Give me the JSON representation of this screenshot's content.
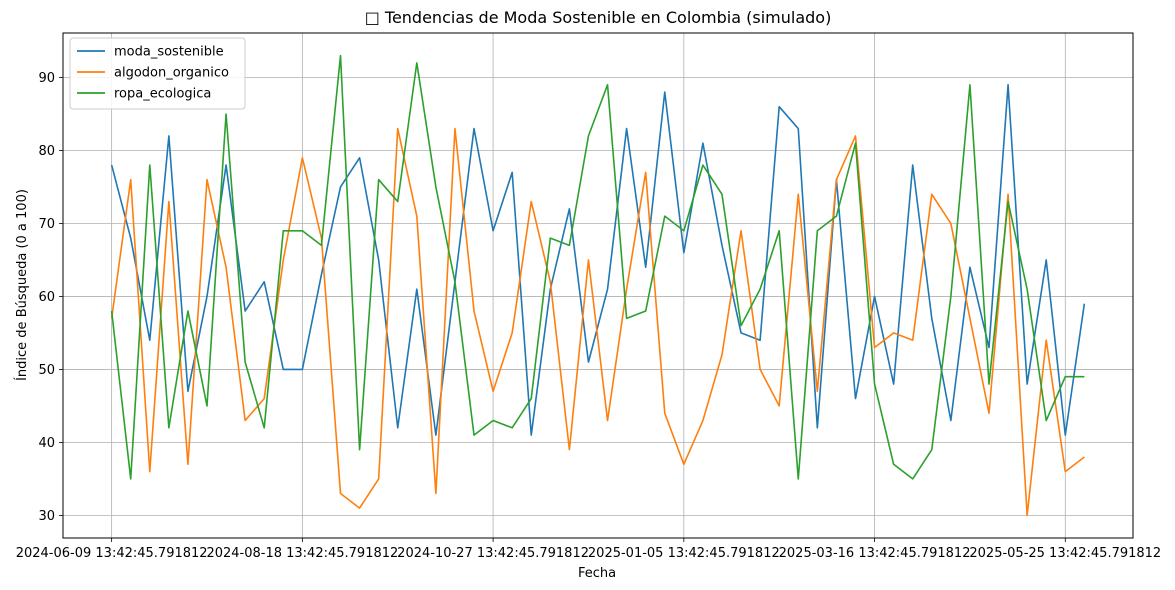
{
  "chart_data": {
    "type": "line",
    "title": "□ Tendencias de Moda Sostenible en Colombia (simulado)",
    "xlabel": "Fecha",
    "ylabel": "Índice de Búsqueda (0 a 100)",
    "x_ticks": [
      "2024-06-09 13:42:45.791812",
      "2024-08-18 13:42:45.791812",
      "2024-10-27 13:42:45.791812",
      "2025-01-05 13:42:45.791812",
      "2025-03-16 13:42:45.791812",
      "2025-05-25 13:42:45.791812"
    ],
    "y_ticks": [
      30,
      40,
      50,
      60,
      70,
      80,
      90
    ],
    "ylim": [
      26.9,
      96.1
    ],
    "x_date_range": [
      "2024-06-09",
      "2025-06-01"
    ],
    "x_step_days": 7,
    "grid": true,
    "legend_position": "top-left",
    "series": [
      {
        "name": "moda_sostenible",
        "color": "#1f77b4",
        "values": [
          78,
          68,
          54,
          82,
          47,
          60,
          78,
          58,
          62,
          50,
          50,
          63,
          75,
          79,
          65,
          42,
          61,
          41,
          62,
          83,
          69,
          77,
          41,
          61,
          72,
          51,
          61,
          83,
          64,
          88,
          66,
          81,
          67,
          55,
          54,
          86,
          83,
          42,
          76,
          46,
          60,
          48,
          78,
          57,
          43,
          64,
          53,
          89,
          48,
          65,
          41,
          59
        ]
      },
      {
        "name": "algodon_organico",
        "color": "#ff7f0e",
        "values": [
          57,
          76,
          36,
          73,
          37,
          76,
          64,
          43,
          46,
          65,
          79,
          68,
          33,
          31,
          35,
          83,
          71,
          33,
          83,
          58,
          47,
          55,
          73,
          62,
          39,
          65,
          43,
          61,
          77,
          44,
          37,
          43,
          52,
          69,
          50,
          45,
          74,
          47,
          76,
          82,
          53,
          55,
          54,
          74,
          70,
          57,
          44,
          74,
          30,
          54,
          36,
          38
        ]
      },
      {
        "name": "ropa_ecologica",
        "color": "#2ca02c",
        "values": [
          58,
          35,
          78,
          42,
          58,
          45,
          85,
          51,
          42,
          69,
          69,
          67,
          93,
          39,
          76,
          73,
          92,
          75,
          62,
          41,
          43,
          42,
          46,
          68,
          67,
          82,
          89,
          57,
          58,
          71,
          69,
          78,
          74,
          56,
          61,
          69,
          35,
          69,
          71,
          81,
          48,
          37,
          35,
          39,
          60,
          89,
          48,
          73,
          61,
          43,
          49,
          49
        ]
      }
    ]
  }
}
